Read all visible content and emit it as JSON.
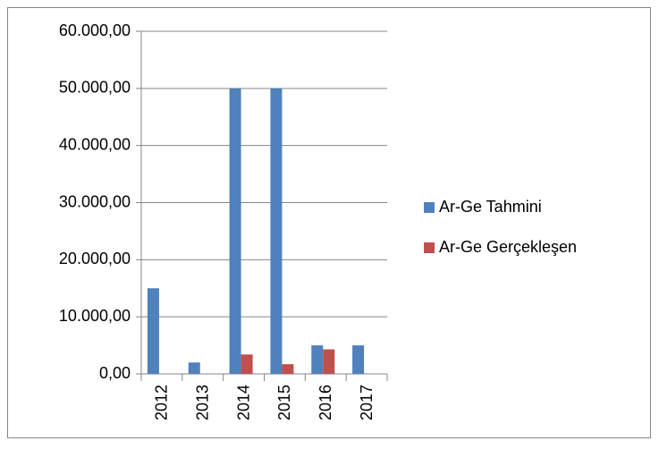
{
  "chart_data": {
    "type": "bar",
    "categories": [
      "2012",
      "2013",
      "2014",
      "2015",
      "2016",
      "2017"
    ],
    "series": [
      {
        "name": "Ar-Ge Tahmini",
        "color": "#4f81bd",
        "values": [
          15000,
          2000,
          50000,
          50000,
          5000,
          5000
        ]
      },
      {
        "name": "Ar-Ge Gerçekleşen",
        "color": "#c0504d",
        "values": [
          null,
          null,
          3400,
          1700,
          4300,
          null
        ]
      }
    ],
    "ylim": [
      0,
      60000
    ],
    "yticks": [
      {
        "value": 0,
        "label": "0,00"
      },
      {
        "value": 10000,
        "label": "10.000,00"
      },
      {
        "value": 20000,
        "label": "20.000,00"
      },
      {
        "value": 30000,
        "label": "30.000,00"
      },
      {
        "value": 40000,
        "label": "40.000,00"
      },
      {
        "value": 50000,
        "label": "50.000,00"
      },
      {
        "value": 60000,
        "label": "60.000,00"
      }
    ],
    "grid": true,
    "legend": "right"
  }
}
